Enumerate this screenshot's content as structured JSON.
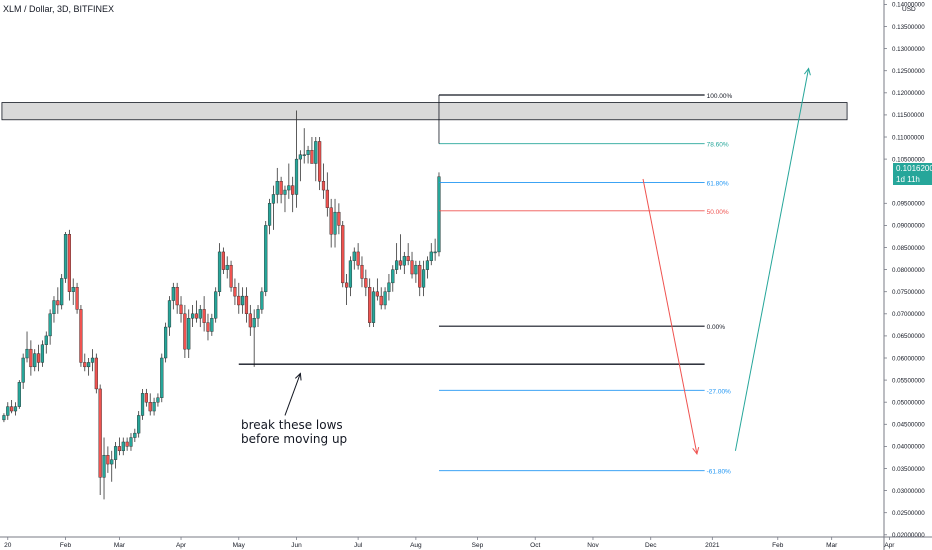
{
  "chart_data": {
    "type": "candlestick",
    "title": "XLM / Dollar, 3D, BITFINEX",
    "currency": "USD",
    "last_price": "0.10162000",
    "countdown": "1d 11h",
    "y_axis": {
      "min": 0.0195,
      "max": 0.141,
      "scale": "linear",
      "ticks": [
        "0.02000000",
        "0.02500000",
        "0.03000000",
        "0.03500000",
        "0.04000000",
        "0.04500000",
        "0.05000000",
        "0.05500000",
        "0.06000000",
        "0.06500000",
        "0.07000000",
        "0.07500000",
        "0.08000000",
        "0.08500000",
        "0.09000000",
        "0.09500000",
        "0.10500000",
        "0.11000000",
        "0.11500000",
        "0.12000000",
        "0.12500000",
        "0.13000000",
        "0.13500000",
        "0.14000000"
      ]
    },
    "x_axis": {
      "ticks": [
        {
          "label": "20",
          "x": 1
        },
        {
          "label": "Feb",
          "x": 16
        },
        {
          "label": "Mar",
          "x": 30
        },
        {
          "label": "Apr",
          "x": 46
        },
        {
          "label": "May",
          "x": 61
        },
        {
          "label": "Jun",
          "x": 76
        },
        {
          "label": "Jul",
          "x": 92
        },
        {
          "label": "Aug",
          "x": 107
        },
        {
          "label": "Sep",
          "x": 123
        },
        {
          "label": "Oct",
          "x": 138
        },
        {
          "label": "Nov",
          "x": 153
        },
        {
          "label": "Dec",
          "x": 168
        },
        {
          "label": "2021",
          "x": 184
        },
        {
          "label": "Feb",
          "x": 201
        },
        {
          "label": "Mar",
          "x": 215
        },
        {
          "label": "Apr",
          "x": 230
        }
      ]
    },
    "candles": [
      [
        0.046,
        0.0475,
        0.0455,
        0.047
      ],
      [
        0.047,
        0.05,
        0.046,
        0.049
      ],
      [
        0.049,
        0.0505,
        0.0475,
        0.048
      ],
      [
        0.048,
        0.05,
        0.047,
        0.049
      ],
      [
        0.049,
        0.055,
        0.0485,
        0.0545
      ],
      [
        0.0545,
        0.061,
        0.053,
        0.06
      ],
      [
        0.06,
        0.066,
        0.059,
        0.062
      ],
      [
        0.062,
        0.064,
        0.056,
        0.058
      ],
      [
        0.058,
        0.062,
        0.057,
        0.061
      ],
      [
        0.061,
        0.063,
        0.057,
        0.059
      ],
      [
        0.059,
        0.064,
        0.058,
        0.063
      ],
      [
        0.063,
        0.066,
        0.061,
        0.065
      ],
      [
        0.065,
        0.071,
        0.063,
        0.07
      ],
      [
        0.07,
        0.074,
        0.068,
        0.073
      ],
      [
        0.073,
        0.076,
        0.07,
        0.072
      ],
      [
        0.072,
        0.079,
        0.071,
        0.078
      ],
      [
        0.078,
        0.0885,
        0.077,
        0.088
      ],
      [
        0.088,
        0.089,
        0.073,
        0.075
      ],
      [
        0.075,
        0.078,
        0.072,
        0.076
      ],
      [
        0.076,
        0.077,
        0.07,
        0.071
      ],
      [
        0.071,
        0.072,
        0.058,
        0.059
      ],
      [
        0.059,
        0.061,
        0.057,
        0.058
      ],
      [
        0.058,
        0.06,
        0.056,
        0.059
      ],
      [
        0.059,
        0.062,
        0.057,
        0.06
      ],
      [
        0.06,
        0.061,
        0.052,
        0.053
      ],
      [
        0.053,
        0.054,
        0.029,
        0.033
      ],
      [
        0.033,
        0.042,
        0.028,
        0.038
      ],
      [
        0.038,
        0.04,
        0.034,
        0.036
      ],
      [
        0.036,
        0.039,
        0.032,
        0.037
      ],
      [
        0.037,
        0.041,
        0.035,
        0.04
      ],
      [
        0.04,
        0.042,
        0.038,
        0.039
      ],
      [
        0.039,
        0.042,
        0.038,
        0.041
      ],
      [
        0.041,
        0.042,
        0.039,
        0.04
      ],
      [
        0.04,
        0.043,
        0.039,
        0.042
      ],
      [
        0.042,
        0.044,
        0.041,
        0.043
      ],
      [
        0.043,
        0.048,
        0.042,
        0.047
      ],
      [
        0.047,
        0.053,
        0.046,
        0.052
      ],
      [
        0.052,
        0.053,
        0.049,
        0.05
      ],
      [
        0.05,
        0.052,
        0.047,
        0.048
      ],
      [
        0.048,
        0.051,
        0.047,
        0.05
      ],
      [
        0.05,
        0.052,
        0.049,
        0.051
      ],
      [
        0.051,
        0.061,
        0.05,
        0.06
      ],
      [
        0.06,
        0.068,
        0.059,
        0.067
      ],
      [
        0.067,
        0.074,
        0.065,
        0.073
      ],
      [
        0.073,
        0.077,
        0.071,
        0.076
      ],
      [
        0.076,
        0.077,
        0.07,
        0.072
      ],
      [
        0.072,
        0.074,
        0.068,
        0.07
      ],
      [
        0.07,
        0.072,
        0.06,
        0.062
      ],
      [
        0.062,
        0.071,
        0.06,
        0.069
      ],
      [
        0.069,
        0.072,
        0.067,
        0.07
      ],
      [
        0.07,
        0.073,
        0.068,
        0.069
      ],
      [
        0.069,
        0.072,
        0.067,
        0.071
      ],
      [
        0.071,
        0.074,
        0.066,
        0.068
      ],
      [
        0.068,
        0.07,
        0.064,
        0.066
      ],
      [
        0.066,
        0.07,
        0.065,
        0.069
      ],
      [
        0.069,
        0.076,
        0.068,
        0.075
      ],
      [
        0.075,
        0.086,
        0.074,
        0.084
      ],
      [
        0.084,
        0.085,
        0.079,
        0.08
      ],
      [
        0.08,
        0.083,
        0.078,
        0.081
      ],
      [
        0.081,
        0.082,
        0.075,
        0.076
      ],
      [
        0.076,
        0.078,
        0.072,
        0.074
      ],
      [
        0.074,
        0.077,
        0.07,
        0.072
      ],
      [
        0.072,
        0.076,
        0.07,
        0.074
      ],
      [
        0.074,
        0.076,
        0.068,
        0.07
      ],
      [
        0.07,
        0.072,
        0.065,
        0.067
      ],
      [
        0.067,
        0.071,
        0.058,
        0.069
      ],
      [
        0.069,
        0.072,
        0.067,
        0.071
      ],
      [
        0.071,
        0.076,
        0.07,
        0.075
      ],
      [
        0.075,
        0.091,
        0.074,
        0.09
      ],
      [
        0.09,
        0.096,
        0.088,
        0.095
      ],
      [
        0.095,
        0.099,
        0.089,
        0.097
      ],
      [
        0.097,
        0.103,
        0.095,
        0.1
      ],
      [
        0.1,
        0.101,
        0.095,
        0.097
      ],
      [
        0.097,
        0.099,
        0.093,
        0.098
      ],
      [
        0.098,
        0.104,
        0.096,
        0.099
      ],
      [
        0.099,
        0.101,
        0.093,
        0.097
      ],
      [
        0.097,
        0.116,
        0.094,
        0.105
      ],
      [
        0.105,
        0.107,
        0.1,
        0.106
      ],
      [
        0.106,
        0.112,
        0.104,
        0.106
      ],
      [
        0.106,
        0.108,
        0.104,
        0.107
      ],
      [
        0.107,
        0.11,
        0.104,
        0.104
      ],
      [
        0.104,
        0.11,
        0.1,
        0.109
      ],
      [
        0.109,
        0.11,
        0.098,
        0.1
      ],
      [
        0.1,
        0.104,
        0.096,
        0.098
      ],
      [
        0.098,
        0.102,
        0.092,
        0.094
      ],
      [
        0.094,
        0.096,
        0.085,
        0.088
      ],
      [
        0.088,
        0.096,
        0.085,
        0.093
      ],
      [
        0.093,
        0.095,
        0.088,
        0.09
      ],
      [
        0.09,
        0.091,
        0.076,
        0.077
      ],
      [
        0.077,
        0.079,
        0.072,
        0.076
      ],
      [
        0.076,
        0.083,
        0.074,
        0.082
      ],
      [
        0.082,
        0.085,
        0.08,
        0.084
      ],
      [
        0.084,
        0.086,
        0.08,
        0.081
      ],
      [
        0.081,
        0.083,
        0.076,
        0.078
      ],
      [
        0.078,
        0.08,
        0.074,
        0.076
      ],
      [
        0.076,
        0.078,
        0.067,
        0.068
      ],
      [
        0.068,
        0.076,
        0.067,
        0.075
      ],
      [
        0.075,
        0.078,
        0.073,
        0.074
      ],
      [
        0.074,
        0.076,
        0.071,
        0.072
      ],
      [
        0.072,
        0.076,
        0.071,
        0.075
      ],
      [
        0.075,
        0.079,
        0.073,
        0.077
      ],
      [
        0.077,
        0.081,
        0.075,
        0.08
      ],
      [
        0.08,
        0.086,
        0.079,
        0.082
      ],
      [
        0.082,
        0.088,
        0.08,
        0.081
      ],
      [
        0.081,
        0.084,
        0.079,
        0.083
      ],
      [
        0.083,
        0.086,
        0.081,
        0.082
      ],
      [
        0.082,
        0.084,
        0.078,
        0.079
      ],
      [
        0.079,
        0.082,
        0.077,
        0.081
      ],
      [
        0.081,
        0.082,
        0.074,
        0.076
      ],
      [
        0.076,
        0.082,
        0.074,
        0.08
      ],
      [
        0.08,
        0.083,
        0.078,
        0.082
      ],
      [
        0.082,
        0.086,
        0.081,
        0.084
      ],
      [
        0.084,
        0.087,
        0.082,
        0.084
      ],
      [
        0.084,
        0.102,
        0.083,
        0.101
      ]
    ],
    "annotations": {
      "resistance_box": {
        "y_top": 0.1178,
        "y_bottom": 0.1139,
        "x_start": 0,
        "x_end": 219
      },
      "fib_levels": [
        {
          "label": "100.00%",
          "price": 0.1195,
          "color": "#131722"
        },
        {
          "label": "78.60%",
          "price": 0.1085,
          "color": "#26a69a"
        },
        {
          "label": "61.80%",
          "price": 0.0997,
          "color": "#2196f3"
        },
        {
          "label": "50.00%",
          "price": 0.0933,
          "color": "#ef5350"
        },
        {
          "label": "0.00%",
          "price": 0.0672,
          "color": "#131722"
        },
        {
          "label": "-27.00%",
          "price": 0.0527,
          "color": "#2196f3"
        },
        {
          "label": "-61.80%",
          "price": 0.0345,
          "color": "#2196f3"
        }
      ],
      "fib_x_start": 113,
      "fib_x_end": 182,
      "support_line": {
        "price": 0.0586,
        "x_start": 61,
        "x_end": 182,
        "color": "#131722"
      },
      "note_text": [
        "break these lows",
        "before moving up"
      ],
      "down_arrow": {
        "from": [
          166,
          0.1005
        ],
        "to": [
          180,
          0.0383
        ],
        "color": "#ef5350"
      },
      "up_arrow": {
        "from": [
          190,
          0.039
        ],
        "to": [
          209,
          0.1255
        ],
        "color": "#26a69a"
      },
      "note_arrow": {
        "from": [
          73,
          0.047
        ],
        "to": [
          77,
          0.0565
        ],
        "color": "#131722"
      }
    }
  }
}
